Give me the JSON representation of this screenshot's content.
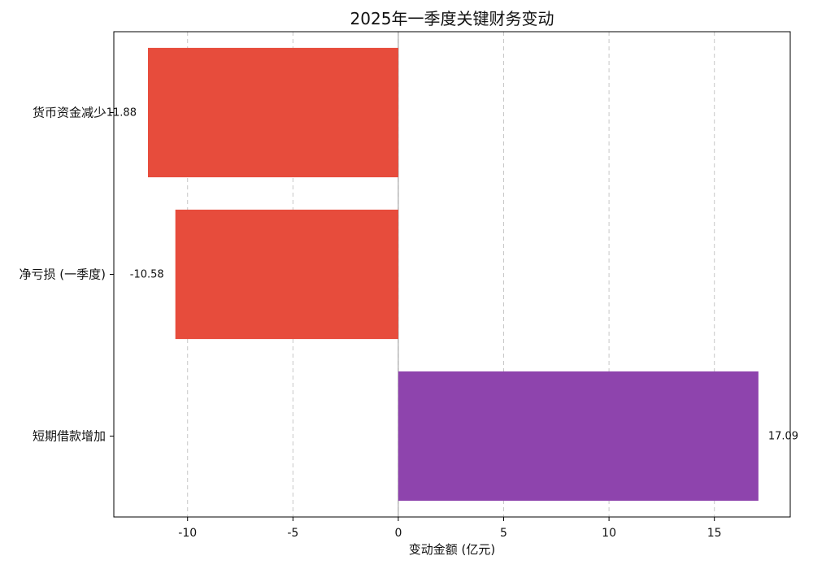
{
  "chart_data": {
    "type": "bar",
    "orientation": "horizontal",
    "title": "2025年一季度关键财务变动",
    "xlabel": "变动金额 (亿元)",
    "ylabel": "",
    "xlim": [
      -13.5,
      18.6
    ],
    "xticks": [
      -10,
      -5,
      0,
      5,
      10,
      15
    ],
    "xtick_labels": [
      "-10",
      "-5",
      "0",
      "5",
      "10",
      "15"
    ],
    "grid": {
      "x": true,
      "y": false,
      "style": "dashed"
    },
    "categories": [
      "货币资金减少",
      "净亏损 (一季度)",
      "短期借款增加"
    ],
    "values": [
      -11.88,
      -10.58,
      17.09
    ],
    "value_labels": [
      "-11.88",
      "-10.58",
      "17.09"
    ],
    "colors": [
      "#e74c3c",
      "#e74c3c",
      "#8e44ad"
    ]
  }
}
